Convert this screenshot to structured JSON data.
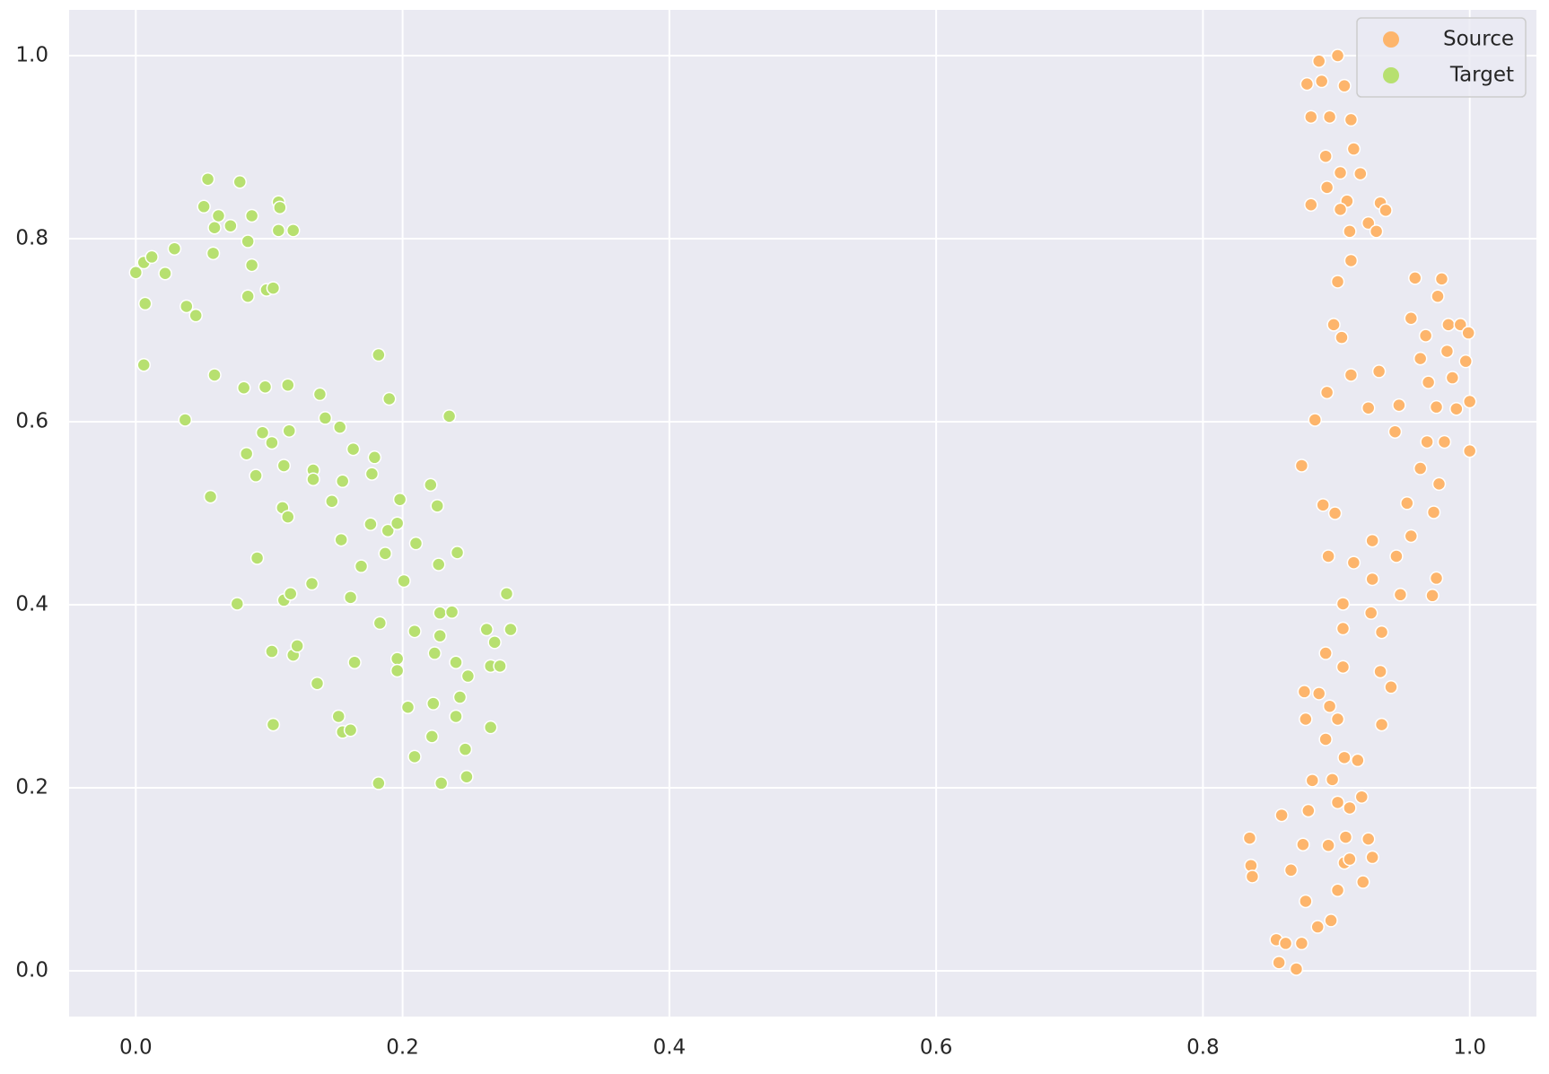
{
  "chart_data": {
    "type": "scatter",
    "xlim": [
      -0.05,
      1.05
    ],
    "ylim": [
      -0.05,
      1.05
    ],
    "xticks": [
      {
        "value": 0,
        "label": "0.0"
      },
      0.2,
      0.4,
      0.6,
      0.8,
      {
        "value": 1,
        "label": "1.0"
      }
    ],
    "yticks": [
      {
        "value": 0,
        "label": "0.0"
      },
      0.2,
      0.4,
      0.6,
      0.8,
      {
        "value": 1,
        "label": "1.0"
      }
    ],
    "grid": true,
    "legend": "upper right",
    "series": [
      {
        "name": "Source",
        "color": "#fdb56c",
        "x": [
          0.901,
          0.887,
          0.906,
          0.889,
          0.878,
          0.881,
          0.895,
          0.911,
          0.913,
          0.892,
          0.903,
          0.918,
          0.893,
          0.908,
          0.903,
          0.881,
          0.933,
          0.937,
          0.924,
          0.93,
          0.91,
          0.911,
          0.901,
          0.959,
          0.979,
          0.976,
          0.956,
          0.984,
          0.993,
          0.999,
          0.967,
          0.898,
          0.904,
          0.983,
          0.963,
          0.997,
          0.969,
          0.987,
          0.932,
          0.911,
          0.893,
          0.947,
          0.975,
          0.99,
          0.924,
          0.944,
          1.0,
          0.884,
          0.968,
          0.981,
          1.0,
          0.874,
          0.963,
          0.977,
          0.953,
          0.89,
          0.899,
          0.973,
          0.956,
          0.927,
          0.945,
          0.913,
          0.894,
          0.927,
          0.975,
          0.948,
          0.972,
          0.905,
          0.926,
          0.905,
          0.934,
          0.892,
          0.905,
          0.933,
          0.941,
          0.876,
          0.887,
          0.895,
          0.901,
          0.877,
          0.934,
          0.892,
          0.906,
          0.916,
          0.882,
          0.897,
          0.919,
          0.879,
          0.901,
          0.91,
          0.859,
          0.835,
          0.894,
          0.875,
          0.924,
          0.907,
          0.906,
          0.91,
          0.927,
          0.836,
          0.837,
          0.866,
          0.901,
          0.92,
          0.877,
          0.896,
          0.886,
          0.855,
          0.862,
          0.874,
          0.857,
          0.87
        ],
        "y": [
          1.0,
          0.994,
          0.967,
          0.972,
          0.969,
          0.933,
          0.933,
          0.93,
          0.898,
          0.89,
          0.872,
          0.871,
          0.856,
          0.841,
          0.832,
          0.837,
          0.839,
          0.831,
          0.817,
          0.808,
          0.808,
          0.776,
          0.753,
          0.757,
          0.756,
          0.737,
          0.713,
          0.706,
          0.706,
          0.697,
          0.694,
          0.706,
          0.692,
          0.677,
          0.669,
          0.666,
          0.643,
          0.648,
          0.655,
          0.651,
          0.632,
          0.618,
          0.616,
          0.614,
          0.615,
          0.589,
          0.622,
          0.602,
          0.578,
          0.578,
          0.568,
          0.552,
          0.549,
          0.532,
          0.511,
          0.509,
          0.5,
          0.501,
          0.475,
          0.47,
          0.453,
          0.446,
          0.453,
          0.428,
          0.429,
          0.411,
          0.41,
          0.401,
          0.391,
          0.374,
          0.37,
          0.347,
          0.332,
          0.327,
          0.31,
          0.305,
          0.303,
          0.289,
          0.275,
          0.275,
          0.269,
          0.253,
          0.233,
          0.23,
          0.208,
          0.209,
          0.19,
          0.175,
          0.184,
          0.178,
          0.17,
          0.145,
          0.137,
          0.138,
          0.144,
          0.146,
          0.118,
          0.122,
          0.124,
          0.115,
          0.103,
          0.11,
          0.088,
          0.097,
          0.076,
          0.055,
          0.048,
          0.034,
          0.03,
          0.03,
          0.009,
          0.002
        ]
      },
      {
        "name": "Target",
        "color": "#b7e070",
        "x": [
          0.0,
          0.006,
          0.012,
          0.022,
          0.029,
          0.007,
          0.006,
          0.038,
          0.045,
          0.054,
          0.051,
          0.059,
          0.062,
          0.071,
          0.078,
          0.087,
          0.084,
          0.087,
          0.058,
          0.084,
          0.098,
          0.103,
          0.107,
          0.108,
          0.107,
          0.118,
          0.059,
          0.037,
          0.056,
          0.081,
          0.097,
          0.114,
          0.083,
          0.09,
          0.095,
          0.102,
          0.115,
          0.111,
          0.11,
          0.114,
          0.091,
          0.076,
          0.111,
          0.116,
          0.102,
          0.118,
          0.121,
          0.103,
          0.136,
          0.132,
          0.133,
          0.133,
          0.147,
          0.138,
          0.142,
          0.153,
          0.163,
          0.155,
          0.154,
          0.179,
          0.177,
          0.176,
          0.189,
          0.187,
          0.169,
          0.161,
          0.183,
          0.164,
          0.152,
          0.155,
          0.161,
          0.182,
          0.19,
          0.235,
          0.198,
          0.196,
          0.221,
          0.226,
          0.21,
          0.227,
          0.241,
          0.201,
          0.209,
          0.228,
          0.237,
          0.228,
          0.224,
          0.196,
          0.196,
          0.24,
          0.249,
          0.243,
          0.223,
          0.204,
          0.24,
          0.222,
          0.209,
          0.182,
          0.229,
          0.247,
          0.248,
          0.263,
          0.269,
          0.266,
          0.273,
          0.281,
          0.278,
          0.266
        ],
        "y": [
          0.763,
          0.774,
          0.78,
          0.762,
          0.789,
          0.729,
          0.662,
          0.726,
          0.716,
          0.865,
          0.835,
          0.812,
          0.825,
          0.814,
          0.862,
          0.825,
          0.797,
          0.771,
          0.784,
          0.737,
          0.744,
          0.746,
          0.84,
          0.834,
          0.809,
          0.809,
          0.651,
          0.602,
          0.518,
          0.637,
          0.638,
          0.64,
          0.565,
          0.541,
          0.588,
          0.577,
          0.59,
          0.552,
          0.506,
          0.496,
          0.451,
          0.401,
          0.405,
          0.412,
          0.349,
          0.345,
          0.355,
          0.269,
          0.314,
          0.423,
          0.547,
          0.537,
          0.513,
          0.63,
          0.604,
          0.594,
          0.57,
          0.535,
          0.471,
          0.561,
          0.543,
          0.488,
          0.481,
          0.456,
          0.442,
          0.408,
          0.38,
          0.337,
          0.278,
          0.261,
          0.263,
          0.673,
          0.625,
          0.606,
          0.515,
          0.489,
          0.531,
          0.508,
          0.467,
          0.444,
          0.457,
          0.426,
          0.371,
          0.391,
          0.392,
          0.366,
          0.347,
          0.341,
          0.328,
          0.337,
          0.322,
          0.299,
          0.292,
          0.288,
          0.278,
          0.256,
          0.234,
          0.205,
          0.205,
          0.242,
          0.212,
          0.373,
          0.359,
          0.333,
          0.333,
          0.373,
          0.412,
          0.266
        ]
      }
    ]
  }
}
